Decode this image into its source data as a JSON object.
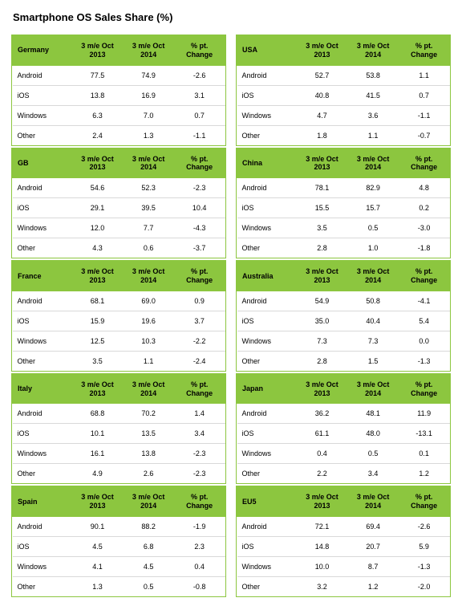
{
  "title": "Smartphone OS Sales Share (%)",
  "colors": {
    "header_bg": "#8cc63f",
    "header_text": "#000000",
    "background": "#ffffff",
    "row_border": "#d9d9d9",
    "text": "#000000"
  },
  "typography": {
    "title_fontsize": 13,
    "title_weight": "bold",
    "header_fontsize": 9,
    "header_weight": "bold",
    "cell_fontsize": 9
  },
  "columnHeaders": [
    "3 m/e Oct 2013",
    "3 m/e Oct 2014",
    "% pt. Change"
  ],
  "layout": {
    "columns": 2,
    "col_widths_pct": [
      28,
      24,
      24,
      24
    ]
  },
  "leftRegions": [
    {
      "name": "Germany",
      "rows": [
        {
          "os": "Android",
          "v2013": "77.5",
          "v2014": "74.9",
          "change": "-2.6"
        },
        {
          "os": "iOS",
          "v2013": "13.8",
          "v2014": "16.9",
          "change": "3.1"
        },
        {
          "os": "Windows",
          "v2013": "6.3",
          "v2014": "7.0",
          "change": "0.7"
        },
        {
          "os": "Other",
          "v2013": "2.4",
          "v2014": "1.3",
          "change": "-1.1"
        }
      ]
    },
    {
      "name": "GB",
      "rows": [
        {
          "os": "Android",
          "v2013": "54.6",
          "v2014": "52.3",
          "change": "-2.3"
        },
        {
          "os": "iOS",
          "v2013": "29.1",
          "v2014": "39.5",
          "change": "10.4"
        },
        {
          "os": "Windows",
          "v2013": "12.0",
          "v2014": "7.7",
          "change": "-4.3"
        },
        {
          "os": "Other",
          "v2013": "4.3",
          "v2014": "0.6",
          "change": "-3.7"
        }
      ]
    },
    {
      "name": "France",
      "rows": [
        {
          "os": "Android",
          "v2013": "68.1",
          "v2014": "69.0",
          "change": "0.9"
        },
        {
          "os": "iOS",
          "v2013": "15.9",
          "v2014": "19.6",
          "change": "3.7"
        },
        {
          "os": "Windows",
          "v2013": "12.5",
          "v2014": "10.3",
          "change": "-2.2"
        },
        {
          "os": "Other",
          "v2013": "3.5",
          "v2014": "1.1",
          "change": "-2.4"
        }
      ]
    },
    {
      "name": "Italy",
      "rows": [
        {
          "os": "Android",
          "v2013": "68.8",
          "v2014": "70.2",
          "change": "1.4"
        },
        {
          "os": "iOS",
          "v2013": "10.1",
          "v2014": "13.5",
          "change": "3.4"
        },
        {
          "os": "Windows",
          "v2013": "16.1",
          "v2014": "13.8",
          "change": "-2.3"
        },
        {
          "os": "Other",
          "v2013": "4.9",
          "v2014": "2.6",
          "change": "-2.3"
        }
      ]
    },
    {
      "name": "Spain",
      "rows": [
        {
          "os": "Android",
          "v2013": "90.1",
          "v2014": "88.2",
          "change": "-1.9"
        },
        {
          "os": "iOS",
          "v2013": "4.5",
          "v2014": "6.8",
          "change": "2.3"
        },
        {
          "os": "Windows",
          "v2013": "4.1",
          "v2014": "4.5",
          "change": "0.4"
        },
        {
          "os": "Other",
          "v2013": "1.3",
          "v2014": "0.5",
          "change": "-0.8"
        }
      ]
    }
  ],
  "rightRegions": [
    {
      "name": "USA",
      "rows": [
        {
          "os": "Android",
          "v2013": "52.7",
          "v2014": "53.8",
          "change": "1.1"
        },
        {
          "os": "iOS",
          "v2013": "40.8",
          "v2014": "41.5",
          "change": "0.7"
        },
        {
          "os": "Windows",
          "v2013": "4.7",
          "v2014": "3.6",
          "change": "-1.1"
        },
        {
          "os": "Other",
          "v2013": "1.8",
          "v2014": "1.1",
          "change": "-0.7"
        }
      ]
    },
    {
      "name": "China",
      "rows": [
        {
          "os": "Android",
          "v2013": "78.1",
          "v2014": "82.9",
          "change": "4.8"
        },
        {
          "os": "iOS",
          "v2013": "15.5",
          "v2014": "15.7",
          "change": "0.2"
        },
        {
          "os": "Windows",
          "v2013": "3.5",
          "v2014": "0.5",
          "change": "-3.0"
        },
        {
          "os": "Other",
          "v2013": "2.8",
          "v2014": "1.0",
          "change": "-1.8"
        }
      ]
    },
    {
      "name": "Australia",
      "rows": [
        {
          "os": "Android",
          "v2013": "54.9",
          "v2014": "50.8",
          "change": "-4.1"
        },
        {
          "os": "iOS",
          "v2013": "35.0",
          "v2014": "40.4",
          "change": "5.4"
        },
        {
          "os": "Windows",
          "v2013": "7.3",
          "v2014": "7.3",
          "change": "0.0"
        },
        {
          "os": "Other",
          "v2013": "2.8",
          "v2014": "1.5",
          "change": "-1.3"
        }
      ]
    },
    {
      "name": "Japan",
      "rows": [
        {
          "os": "Android",
          "v2013": "36.2",
          "v2014": "48.1",
          "change": "11.9"
        },
        {
          "os": "iOS",
          "v2013": "61.1",
          "v2014": "48.0",
          "change": "-13.1"
        },
        {
          "os": "Windows",
          "v2013": "0.4",
          "v2014": "0.5",
          "change": "0.1"
        },
        {
          "os": "Other",
          "v2013": "2.2",
          "v2014": "3.4",
          "change": "1.2"
        }
      ]
    },
    {
      "name": "EU5",
      "rows": [
        {
          "os": "Android",
          "v2013": "72.1",
          "v2014": "69.4",
          "change": "-2.6"
        },
        {
          "os": "iOS",
          "v2013": "14.8",
          "v2014": "20.7",
          "change": "5.9"
        },
        {
          "os": "Windows",
          "v2013": "10.0",
          "v2014": "8.7",
          "change": "-1.3"
        },
        {
          "os": "Other",
          "v2013": "3.2",
          "v2014": "1.2",
          "change": "-2.0"
        }
      ]
    }
  ]
}
